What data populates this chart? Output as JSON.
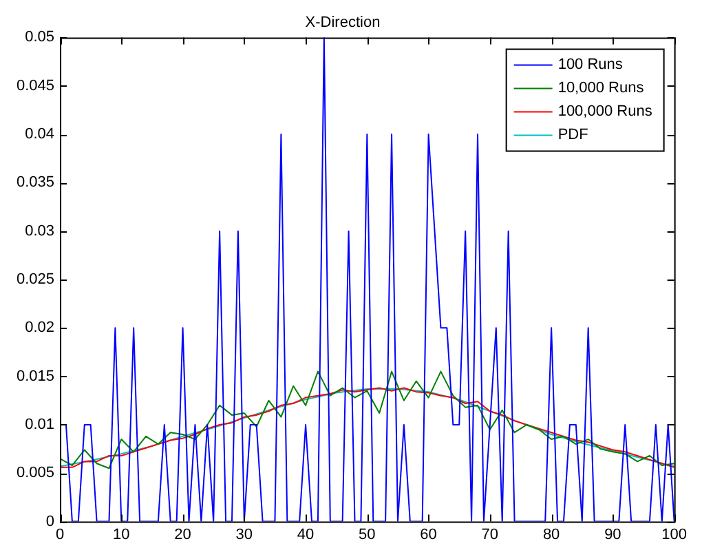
{
  "chart_data": {
    "type": "line",
    "title": "X-Direction",
    "xlim": [
      0,
      100
    ],
    "xticks": [
      0,
      10,
      20,
      30,
      40,
      50,
      60,
      70,
      80,
      90,
      100
    ],
    "ylim": [
      0,
      0.05
    ],
    "yticks": [
      0,
      0.005,
      0.01,
      0.015,
      0.02,
      0.025,
      0.03,
      0.035,
      0.04,
      0.045,
      0.05
    ],
    "grid": false,
    "legend": "top right",
    "marker": "none",
    "line_style": "solid",
    "series": [
      {
        "name": "100 Runs",
        "color": "#0000ff",
        "x": [
          0,
          1,
          2,
          3,
          4,
          5,
          6,
          7,
          8,
          9,
          10,
          11,
          12,
          13,
          14,
          15,
          16,
          17,
          18,
          19,
          20,
          21,
          22,
          23,
          24,
          25,
          26,
          27,
          28,
          29,
          30,
          31,
          32,
          33,
          34,
          35,
          36,
          37,
          38,
          39,
          40,
          41,
          42,
          43,
          44,
          45,
          46,
          47,
          48,
          49,
          50,
          51,
          52,
          53,
          54,
          55,
          56,
          57,
          58,
          59,
          60,
          61,
          62,
          63,
          64,
          65,
          66,
          67,
          68,
          69,
          70,
          71,
          72,
          73,
          74,
          75,
          76,
          77,
          78,
          79,
          80,
          81,
          82,
          83,
          84,
          85,
          86,
          87,
          88,
          89,
          90,
          91,
          92,
          93,
          94,
          95,
          96,
          97,
          98,
          99,
          100
        ],
        "values": [
          0.01,
          0.01,
          0,
          0,
          0.01,
          0.01,
          0,
          0,
          0,
          0.02,
          0,
          0,
          0.02,
          0,
          0,
          0,
          0,
          0.01,
          0,
          0,
          0.02,
          0,
          0.01,
          0,
          0.01,
          0,
          0.03,
          0,
          0,
          0.03,
          0,
          0.01,
          0.01,
          0,
          0,
          0,
          0.04,
          0,
          0,
          0,
          0.01,
          0,
          0,
          0.05,
          0,
          0,
          0,
          0.03,
          0,
          0,
          0.04,
          0,
          0,
          0,
          0.04,
          0,
          0.01,
          0,
          0,
          0,
          0.04,
          0.03,
          0.02,
          0.02,
          0.01,
          0.01,
          0.03,
          0,
          0.04,
          0,
          0.01,
          0.02,
          0,
          0.03,
          0,
          0,
          0,
          0,
          0,
          0,
          0.02,
          0,
          0,
          0.01,
          0.01,
          0,
          0.02,
          0,
          0,
          0,
          0,
          0,
          0.01,
          0,
          0,
          0,
          0,
          0.01,
          0,
          0.01,
          0
        ]
      },
      {
        "name": "10,000 Runs",
        "color": "#008000",
        "x": [
          0,
          2,
          4,
          6,
          8,
          10,
          12,
          14,
          16,
          18,
          20,
          22,
          24,
          26,
          28,
          30,
          32,
          34,
          36,
          38,
          40,
          42,
          44,
          46,
          48,
          50,
          52,
          54,
          56,
          58,
          60,
          62,
          64,
          66,
          68,
          70,
          72,
          74,
          76,
          78,
          80,
          82,
          84,
          86,
          88,
          90,
          92,
          94,
          96,
          98,
          100
        ],
        "values": [
          0.0065,
          0.0058,
          0.0074,
          0.006,
          0.0055,
          0.0085,
          0.0072,
          0.0088,
          0.008,
          0.0092,
          0.009,
          0.0085,
          0.01,
          0.012,
          0.011,
          0.0112,
          0.0098,
          0.0125,
          0.0108,
          0.014,
          0.012,
          0.0155,
          0.013,
          0.0138,
          0.0128,
          0.0135,
          0.0112,
          0.0155,
          0.0125,
          0.0145,
          0.0128,
          0.0155,
          0.013,
          0.0118,
          0.012,
          0.0095,
          0.0115,
          0.0092,
          0.01,
          0.0095,
          0.0085,
          0.0088,
          0.008,
          0.0085,
          0.0075,
          0.0072,
          0.007,
          0.0062,
          0.0068,
          0.0058,
          0.006
        ]
      },
      {
        "name": "100,000 Runs",
        "color": "#ff0000",
        "x": [
          0,
          2,
          4,
          6,
          8,
          10,
          12,
          14,
          16,
          18,
          20,
          22,
          24,
          26,
          28,
          30,
          32,
          34,
          36,
          38,
          40,
          42,
          44,
          46,
          48,
          50,
          52,
          54,
          56,
          58,
          60,
          62,
          64,
          66,
          68,
          70,
          72,
          74,
          76,
          78,
          80,
          82,
          84,
          86,
          88,
          90,
          92,
          94,
          96,
          98,
          100
        ],
        "values": [
          0.0056,
          0.0056,
          0.0062,
          0.0062,
          0.0068,
          0.0068,
          0.0072,
          0.0076,
          0.008,
          0.0084,
          0.0086,
          0.009,
          0.0096,
          0.01,
          0.0102,
          0.0108,
          0.011,
          0.0114,
          0.012,
          0.0122,
          0.0128,
          0.013,
          0.0132,
          0.0136,
          0.0134,
          0.0136,
          0.0138,
          0.0135,
          0.0138,
          0.0134,
          0.0133,
          0.013,
          0.0128,
          0.0122,
          0.0124,
          0.0114,
          0.011,
          0.0104,
          0.01,
          0.0096,
          0.0092,
          0.0088,
          0.0084,
          0.0082,
          0.0078,
          0.0074,
          0.0072,
          0.0068,
          0.0064,
          0.006,
          0.0056
        ]
      },
      {
        "name": "PDF",
        "color": "#00bfbf",
        "x": [
          0,
          5,
          10,
          15,
          20,
          25,
          30,
          35,
          40,
          45,
          50,
          55,
          60,
          65,
          70,
          75,
          80,
          85,
          90,
          95,
          100
        ],
        "values": [
          0.0057,
          0.0063,
          0.007,
          0.0078,
          0.0088,
          0.0097,
          0.0107,
          0.0117,
          0.0126,
          0.0133,
          0.0137,
          0.0137,
          0.0134,
          0.0126,
          0.0114,
          0.0102,
          0.009,
          0.0081,
          0.0073,
          0.0065,
          0.0057
        ]
      }
    ]
  }
}
